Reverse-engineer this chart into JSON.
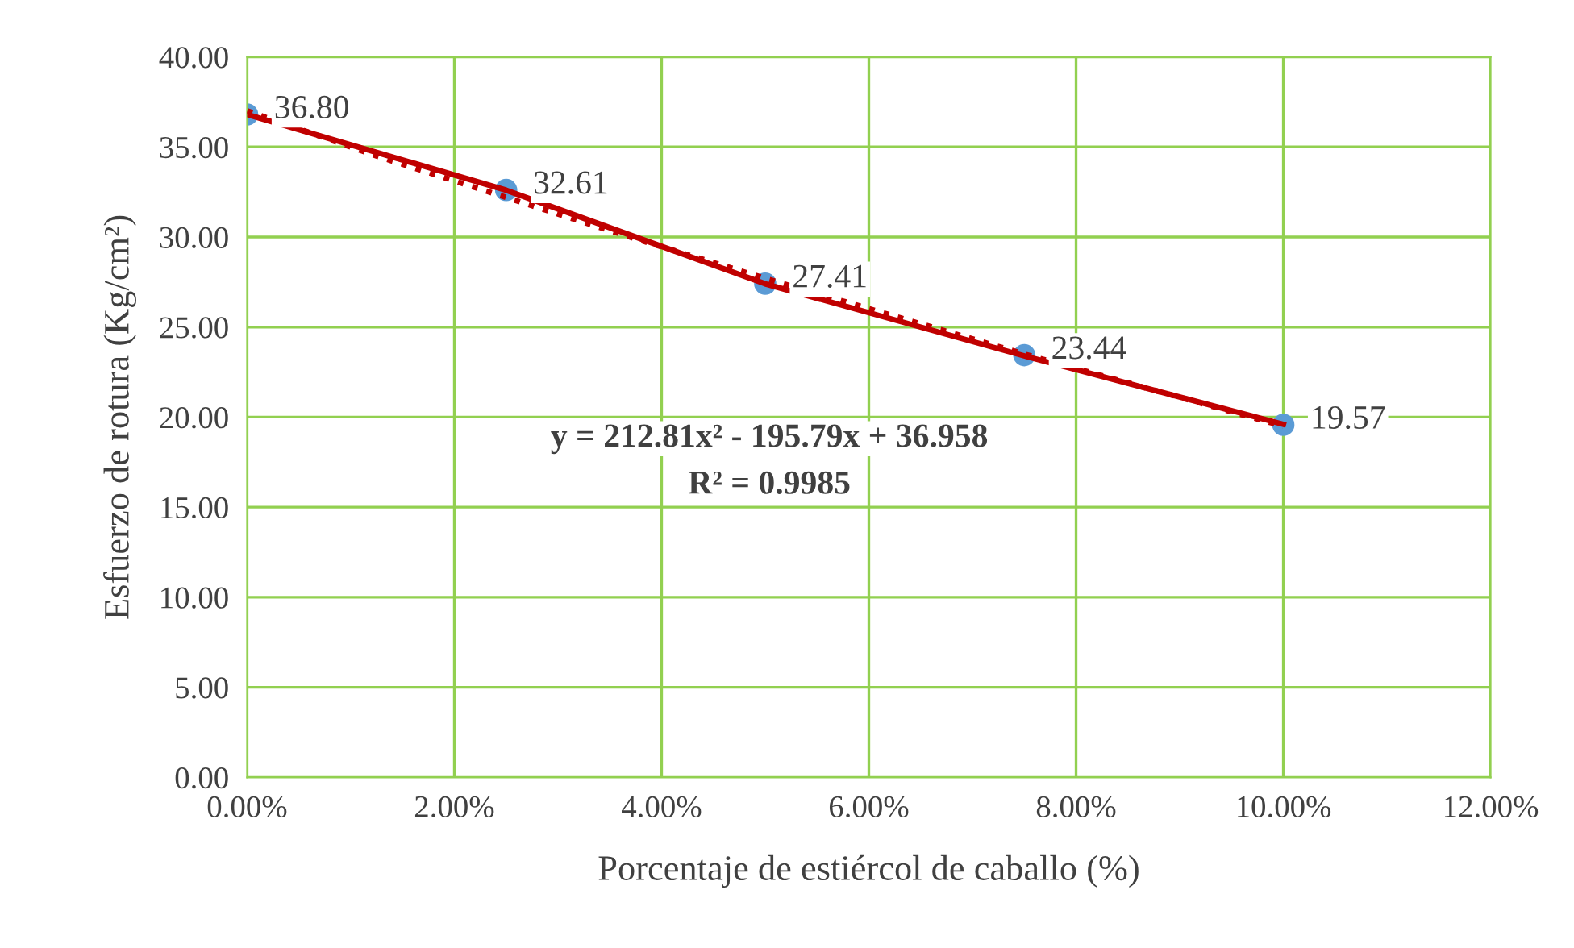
{
  "chart_data": {
    "type": "scatter",
    "xlabel": "Porcentaje de estiércol de caballo (%)",
    "ylabel": "Esfuerzo de rotura (Kg/cm²)",
    "x": [
      0,
      2.5,
      5,
      7.5,
      10
    ],
    "series": [
      {
        "type": "line",
        "color": "#c00000",
        "line_style": "dotted",
        "marker": "none",
        "x": [
          0,
          1.25,
          2.5,
          3.75,
          5,
          6.25,
          7.5,
          8.75,
          10
        ],
        "values": [
          37.0,
          34.5,
          32.2,
          29.9,
          27.7,
          25.6,
          23.5,
          21.5,
          19.5
        ]
      },
      {
        "color": "#5b9bd5",
        "marker": "circle",
        "values": [
          36.8,
          32.61,
          27.41,
          23.44,
          19.57
        ],
        "value_labels": [
          "36.80",
          "32.61",
          "27.41",
          "23.44",
          "19.57"
        ]
      },
      {
        "type": "line",
        "color": "#c00000",
        "line_style": "solid",
        "marker": "none",
        "values": [
          36.8,
          32.6,
          27.4,
          23.4,
          19.6
        ]
      }
    ],
    "annotations": [
      "y = 212.81x² - 195.79x + 36.958",
      "R² = 0.9985"
    ],
    "xlim": [
      0,
      12
    ],
    "ylim": [
      0,
      40
    ],
    "xticks": [
      {
        "value": 0,
        "label": "0.00%"
      },
      {
        "value": 2,
        "label": "2.00%"
      },
      {
        "value": 4,
        "label": "4.00%"
      },
      {
        "value": 6,
        "label": "6.00%"
      },
      {
        "value": 8,
        "label": "8.00%"
      },
      {
        "value": 10,
        "label": "10.00%"
      },
      {
        "value": 12,
        "label": "12.00%"
      }
    ],
    "yticks": [
      {
        "value": 0,
        "label": "0.00"
      },
      {
        "value": 5,
        "label": "5.00"
      },
      {
        "value": 10,
        "label": "10.00"
      },
      {
        "value": 15,
        "label": "15.00"
      },
      {
        "value": 20,
        "label": "20.00"
      },
      {
        "value": 25,
        "label": "25.00"
      },
      {
        "value": 30,
        "label": "30.00"
      },
      {
        "value": 35,
        "label": "35.00"
      },
      {
        "value": 40,
        "label": "40.00"
      }
    ],
    "grid": true,
    "legend": false
  }
}
